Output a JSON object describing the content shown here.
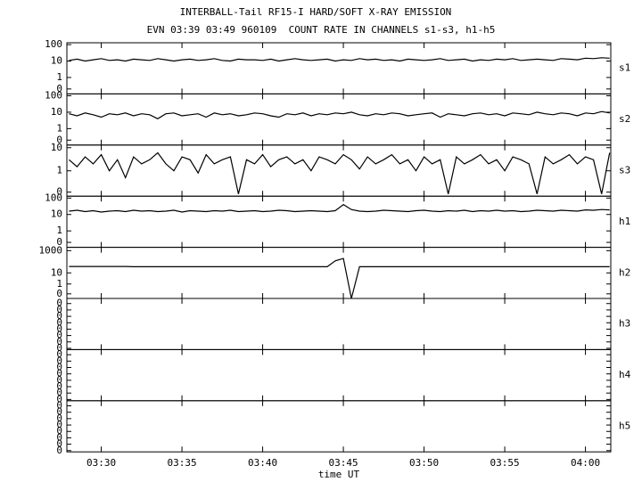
{
  "title": "INTERBALL-Tail RF15-I HARD/SOFT X-RAY EMISSION",
  "subtitle": "EVN 03:39 03:49 960109  COUNT RATE IN CHANNELS s1-s3, h1-h5",
  "xlabel": "time UT",
  "xlim": [
    27.87,
    61.57
  ],
  "xticks": [
    {
      "value": 30,
      "label": "03:30"
    },
    {
      "value": 35,
      "label": "03:35"
    },
    {
      "value": 40,
      "label": "03:40"
    },
    {
      "value": 45,
      "label": "03:45"
    },
    {
      "value": 50,
      "label": "03:50"
    },
    {
      "value": 55,
      "label": "03:55"
    },
    {
      "value": 60,
      "label": "04:00"
    }
  ],
  "x": [
    28,
    28.5,
    29,
    29.5,
    30,
    30.5,
    31,
    31.5,
    32,
    32.5,
    33,
    33.5,
    34,
    34.5,
    35,
    35.5,
    36,
    36.5,
    37,
    37.5,
    38,
    38.5,
    39,
    39.5,
    40,
    40.5,
    41,
    41.5,
    42,
    42.5,
    43,
    43.5,
    44,
    44.5,
    45,
    45.5,
    46,
    46.5,
    47,
    47.5,
    48,
    48.5,
    49,
    49.5,
    50,
    50.5,
    51,
    51.5,
    52,
    52.5,
    53,
    53.5,
    54,
    54.5,
    55,
    55.5,
    56,
    56.5,
    57,
    57.5,
    58,
    58.5,
    59,
    59.5,
    60,
    60.5,
    61,
    61.5
  ],
  "chart_data": [
    {
      "type": "line",
      "log": true,
      "ylim": [
        0.1,
        130
      ],
      "yticks": [
        100,
        10,
        1,
        {
          "value": 0.2,
          "label": "0"
        }
      ],
      "series": [
        {
          "name": "s1",
          "color": "#000000",
          "values": [
            11,
            13,
            10,
            12,
            14,
            11,
            12,
            10,
            13,
            12,
            11,
            14,
            12,
            10,
            12,
            13,
            11,
            12,
            14,
            11,
            10,
            13,
            12,
            12,
            11,
            13,
            10,
            12,
            14,
            12,
            11,
            12,
            13,
            10,
            12,
            11,
            14,
            12,
            13,
            11,
            12,
            10,
            13,
            12,
            11,
            12,
            14,
            11,
            12,
            13,
            10,
            12,
            11,
            13,
            12,
            14,
            11,
            12,
            13,
            12,
            11,
            14,
            13,
            12,
            15,
            14,
            16,
            15
          ]
        }
      ]
    },
    {
      "type": "line",
      "log": true,
      "ylim": [
        0.1,
        130
      ],
      "yticks": [
        100,
        10,
        1,
        {
          "value": 0.2,
          "label": "0"
        }
      ],
      "series": [
        {
          "name": "s2",
          "color": "#000000",
          "values": [
            8,
            6,
            9,
            7,
            5,
            8,
            7,
            9,
            6,
            8,
            7,
            4,
            8,
            9,
            6,
            7,
            8,
            5,
            9,
            7,
            8,
            6,
            7,
            9,
            8,
            6,
            5,
            8,
            7,
            9,
            6,
            8,
            7,
            9,
            8,
            10,
            7,
            6,
            8,
            7,
            9,
            8,
            6,
            7,
            8,
            9,
            5,
            8,
            7,
            6,
            8,
            9,
            7,
            8,
            6,
            9,
            8,
            7,
            10,
            8,
            7,
            9,
            8,
            6,
            9,
            8,
            11,
            9
          ]
        }
      ]
    },
    {
      "type": "line",
      "log": true,
      "ylim": [
        0.08,
        13
      ],
      "yticks": [
        10,
        1,
        {
          "value": 0.12,
          "label": "0"
        }
      ],
      "series": [
        {
          "name": "s3",
          "color": "#000000",
          "values": [
            3,
            1.5,
            4,
            2,
            5,
            1,
            3,
            0.5,
            4,
            2,
            3,
            6,
            2,
            1,
            4,
            3,
            0.8,
            5,
            2,
            3,
            4,
            0.1,
            3,
            2,
            5,
            1.5,
            3,
            4,
            2,
            3,
            1,
            4,
            3,
            2,
            5,
            3,
            1.2,
            4,
            2,
            3,
            5,
            2,
            3,
            1,
            4,
            2,
            3,
            0.1,
            4,
            2,
            3,
            5,
            2,
            3,
            1,
            4,
            3,
            2,
            0.1,
            4,
            2,
            3,
            5,
            2,
            4,
            3,
            0.1,
            6
          ]
        }
      ]
    },
    {
      "type": "line",
      "log": true,
      "ylim": [
        0.1,
        130
      ],
      "yticks": [
        100,
        10,
        1,
        {
          "value": 0.2,
          "label": "0"
        }
      ],
      "series": [
        {
          "name": "h1",
          "color": "#000000",
          "values": [
            16,
            18,
            15,
            17,
            14,
            16,
            17,
            15,
            18,
            16,
            17,
            15,
            16,
            18,
            14,
            17,
            16,
            15,
            17,
            16,
            18,
            15,
            16,
            17,
            15,
            16,
            18,
            17,
            15,
            16,
            17,
            16,
            15,
            17,
            40,
            20,
            16,
            15,
            16,
            18,
            17,
            16,
            15,
            17,
            18,
            16,
            15,
            17,
            16,
            18,
            15,
            17,
            16,
            18,
            16,
            17,
            15,
            16,
            18,
            17,
            16,
            18,
            17,
            16,
            19,
            18,
            20,
            19
          ]
        }
      ]
    },
    {
      "type": "line",
      "log": true,
      "ylim": [
        0.05,
        2000
      ],
      "yticks": [
        1000,
        10,
        1,
        {
          "value": 0.13,
          "label": "0"
        }
      ],
      "series": [
        {
          "name": "h2",
          "color": "#000000",
          "values": [
            38,
            38,
            38,
            38,
            38,
            38,
            38,
            38,
            36,
            36,
            36,
            36,
            36,
            36,
            36,
            36,
            36,
            36,
            36,
            36,
            36,
            36,
            36,
            36,
            36,
            36,
            36,
            36,
            36,
            36,
            36,
            36,
            36,
            120,
            200,
            0.05,
            36,
            36,
            36,
            36,
            36,
            36,
            36,
            36,
            36,
            36,
            36,
            36,
            36,
            36,
            36,
            36,
            36,
            36,
            36,
            36,
            36,
            36,
            36,
            36,
            36,
            36,
            36,
            36,
            36,
            36,
            36,
            36
          ]
        }
      ]
    },
    {
      "type": "line",
      "log": false,
      "ylim": [
        -0.01,
        0.39
      ],
      "yticks": [
        0,
        {
          "value": 0.05,
          "label": "0"
        },
        {
          "value": 0.1,
          "label": "0"
        },
        {
          "value": 0.15,
          "label": "0"
        },
        {
          "value": 0.2,
          "label": "0"
        },
        {
          "value": 0.25,
          "label": "0"
        },
        {
          "value": 0.3,
          "label": "0"
        },
        {
          "value": 0.35,
          "label": "0"
        }
      ],
      "series": [
        {
          "name": "h3"
        }
      ]
    },
    {
      "type": "line",
      "log": false,
      "ylim": [
        -0.01,
        0.39
      ],
      "yticks": [
        0,
        {
          "value": 0.05,
          "label": "0"
        },
        {
          "value": 0.1,
          "label": "0"
        },
        {
          "value": 0.15,
          "label": "0"
        },
        {
          "value": 0.2,
          "label": "0"
        },
        {
          "value": 0.25,
          "label": "0"
        },
        {
          "value": 0.3,
          "label": "0"
        },
        {
          "value": 0.35,
          "label": "0"
        }
      ],
      "series": [
        {
          "name": "h4"
        }
      ]
    },
    {
      "type": "line",
      "log": false,
      "ylim": [
        -0.01,
        0.39
      ],
      "yticks": [
        0,
        {
          "value": 0.05,
          "label": "0"
        },
        {
          "value": 0.1,
          "label": "0"
        },
        {
          "value": 0.15,
          "label": "0"
        },
        {
          "value": 0.2,
          "label": "0"
        },
        {
          "value": 0.25,
          "label": "0"
        },
        {
          "value": 0.3,
          "label": "0"
        },
        {
          "value": 0.35,
          "label": "0"
        }
      ],
      "series": [
        {
          "name": "h5"
        }
      ]
    }
  ]
}
